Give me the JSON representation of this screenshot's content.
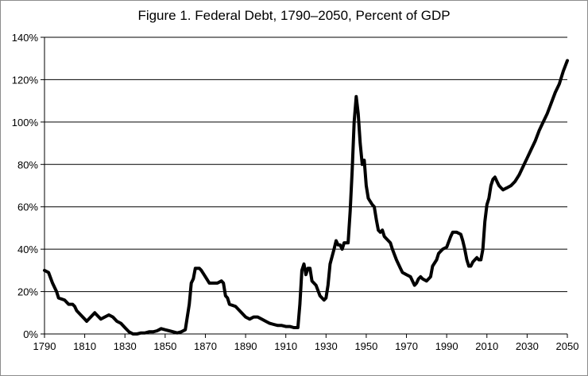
{
  "chart_data": {
    "type": "line",
    "title": "Figure 1. Federal Debt, 1790–2050, Percent of GDP",
    "xlabel": "",
    "ylabel": "",
    "xlim": [
      1790,
      2050
    ],
    "ylim": [
      0,
      140
    ],
    "x_ticks": [
      "1790",
      "1810",
      "1830",
      "1850",
      "1870",
      "1890",
      "1910",
      "1930",
      "1950",
      "1970",
      "1990",
      "2010",
      "2030",
      "2050"
    ],
    "y_ticks": [
      "0%",
      "20%",
      "40%",
      "60%",
      "80%",
      "100%",
      "120%",
      "140%"
    ],
    "y_tick_values": [
      0,
      20,
      40,
      60,
      80,
      100,
      120,
      140
    ],
    "grid": true,
    "series": [
      {
        "name": "Federal Debt (% of GDP)",
        "points": [
          [
            1790,
            30
          ],
          [
            1792,
            29
          ],
          [
            1794,
            24
          ],
          [
            1796,
            20
          ],
          [
            1797,
            17
          ],
          [
            1800,
            16
          ],
          [
            1802,
            14
          ],
          [
            1804,
            14
          ],
          [
            1805,
            13
          ],
          [
            1806,
            11
          ],
          [
            1808,
            9
          ],
          [
            1810,
            7
          ],
          [
            1811,
            6
          ],
          [
            1812,
            7
          ],
          [
            1813,
            8
          ],
          [
            1815,
            10
          ],
          [
            1816,
            9
          ],
          [
            1818,
            7
          ],
          [
            1820,
            8
          ],
          [
            1822,
            9
          ],
          [
            1824,
            8
          ],
          [
            1826,
            6
          ],
          [
            1828,
            5
          ],
          [
            1830,
            3
          ],
          [
            1832,
            1
          ],
          [
            1834,
            0
          ],
          [
            1836,
            0
          ],
          [
            1838,
            0.5
          ],
          [
            1840,
            0.5
          ],
          [
            1842,
            1
          ],
          [
            1844,
            1
          ],
          [
            1846,
            1.5
          ],
          [
            1848,
            2.5
          ],
          [
            1850,
            2
          ],
          [
            1852,
            1.5
          ],
          [
            1854,
            1
          ],
          [
            1856,
            0.5
          ],
          [
            1858,
            1
          ],
          [
            1860,
            2
          ],
          [
            1862,
            14
          ],
          [
            1863,
            24
          ],
          [
            1864,
            26
          ],
          [
            1865,
            31
          ],
          [
            1867,
            31
          ],
          [
            1868,
            30
          ],
          [
            1870,
            27
          ],
          [
            1872,
            24
          ],
          [
            1874,
            24
          ],
          [
            1876,
            24
          ],
          [
            1878,
            25
          ],
          [
            1879,
            24
          ],
          [
            1880,
            18
          ],
          [
            1881,
            17
          ],
          [
            1882,
            14
          ],
          [
            1885,
            13
          ],
          [
            1888,
            10
          ],
          [
            1890,
            8
          ],
          [
            1892,
            7
          ],
          [
            1894,
            8
          ],
          [
            1896,
            8
          ],
          [
            1898,
            7
          ],
          [
            1900,
            6
          ],
          [
            1902,
            5
          ],
          [
            1904,
            4.5
          ],
          [
            1906,
            4
          ],
          [
            1908,
            4
          ],
          [
            1910,
            3.5
          ],
          [
            1912,
            3.5
          ],
          [
            1914,
            3
          ],
          [
            1916,
            3
          ],
          [
            1917,
            14
          ],
          [
            1918,
            30
          ],
          [
            1919,
            33
          ],
          [
            1920,
            28
          ],
          [
            1921,
            31
          ],
          [
            1922,
            31
          ],
          [
            1923,
            25
          ],
          [
            1925,
            23
          ],
          [
            1927,
            18
          ],
          [
            1929,
            16
          ],
          [
            1930,
            17
          ],
          [
            1931,
            23
          ],
          [
            1932,
            33
          ],
          [
            1934,
            40
          ],
          [
            1935,
            44
          ],
          [
            1936,
            42
          ],
          [
            1937,
            42
          ],
          [
            1938,
            40
          ],
          [
            1939,
            43
          ],
          [
            1940,
            43
          ],
          [
            1941,
            43
          ],
          [
            1942,
            58
          ],
          [
            1943,
            77
          ],
          [
            1944,
            100
          ],
          [
            1945,
            112
          ],
          [
            1946,
            104
          ],
          [
            1947,
            90
          ],
          [
            1948,
            80
          ],
          [
            1949,
            82
          ],
          [
            1950,
            70
          ],
          [
            1951,
            64
          ],
          [
            1953,
            61
          ],
          [
            1954,
            60
          ],
          [
            1955,
            54
          ],
          [
            1956,
            49
          ],
          [
            1957,
            48
          ],
          [
            1958,
            49
          ],
          [
            1959,
            46
          ],
          [
            1960,
            45
          ],
          [
            1962,
            43
          ],
          [
            1963,
            40
          ],
          [
            1965,
            35
          ],
          [
            1967,
            31
          ],
          [
            1968,
            29
          ],
          [
            1970,
            28
          ],
          [
            1972,
            27
          ],
          [
            1973,
            25
          ],
          [
            1974,
            23
          ],
          [
            1975,
            24
          ],
          [
            1976,
            26
          ],
          [
            1977,
            27
          ],
          [
            1978,
            26
          ],
          [
            1980,
            25
          ],
          [
            1982,
            27
          ],
          [
            1983,
            32
          ],
          [
            1985,
            35
          ],
          [
            1986,
            38
          ],
          [
            1988,
            40
          ],
          [
            1990,
            41
          ],
          [
            1992,
            46
          ],
          [
            1993,
            48
          ],
          [
            1995,
            48
          ],
          [
            1997,
            47
          ],
          [
            1998,
            44
          ],
          [
            1999,
            40
          ],
          [
            2000,
            35
          ],
          [
            2001,
            32
          ],
          [
            2002,
            32
          ],
          [
            2003,
            34
          ],
          [
            2004,
            35
          ],
          [
            2005,
            36
          ],
          [
            2006,
            35
          ],
          [
            2007,
            35
          ],
          [
            2008,
            40
          ],
          [
            2009,
            53
          ],
          [
            2010,
            61
          ],
          [
            2011,
            64
          ],
          [
            2012,
            70
          ],
          [
            2013,
            73
          ],
          [
            2014,
            74
          ],
          [
            2015,
            72
          ],
          [
            2016,
            70
          ],
          [
            2017,
            69
          ],
          [
            2018,
            68
          ],
          [
            2020,
            69
          ],
          [
            2022,
            70
          ],
          [
            2024,
            72
          ],
          [
            2026,
            75
          ],
          [
            2028,
            79
          ],
          [
            2030,
            83
          ],
          [
            2032,
            87
          ],
          [
            2034,
            91
          ],
          [
            2036,
            96
          ],
          [
            2038,
            100
          ],
          [
            2040,
            104
          ],
          [
            2042,
            109
          ],
          [
            2044,
            114
          ],
          [
            2046,
            118
          ],
          [
            2048,
            124
          ],
          [
            2050,
            129
          ]
        ]
      }
    ]
  }
}
